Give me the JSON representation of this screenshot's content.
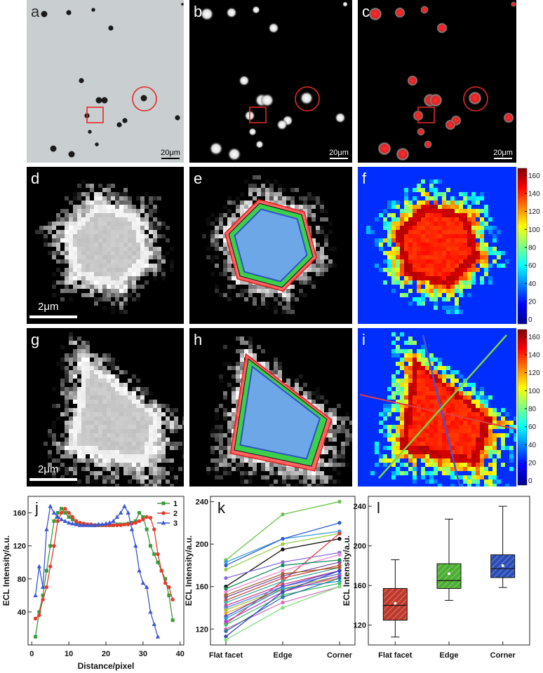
{
  "panels": [
    {
      "label": "a",
      "scale_bar": "20μm"
    },
    {
      "label": "b",
      "scale_bar": "20μm"
    },
    {
      "label": "c",
      "scale_bar": "20μm"
    },
    {
      "label": "d",
      "scale_bar": "2μm"
    },
    {
      "label": "e"
    },
    {
      "label": "f"
    },
    {
      "label": "g",
      "scale_bar": "2μm"
    },
    {
      "label": "h"
    },
    {
      "label": "i"
    }
  ],
  "colorbars": [
    {
      "lim": [
        -5,
        168
      ],
      "ticks": [
        0,
        20,
        40,
        60,
        80,
        100,
        120,
        140,
        160
      ]
    },
    {
      "lim": [
        -5,
        168
      ],
      "ticks": [
        0,
        20,
        40,
        60,
        80,
        100,
        120,
        140,
        160
      ]
    }
  ],
  "chart_data": [
    {
      "type": "line",
      "panel_label": "j",
      "xlabel": "Distance/pixel",
      "ylabel": "ECL Intensity/a.u.",
      "xlim": [
        -1,
        41
      ],
      "xticks": [
        0,
        10,
        20,
        30,
        40
      ],
      "ylim": [
        0,
        180
      ],
      "yticks": [
        40,
        80,
        120,
        160
      ],
      "legend": "upper right",
      "series": [
        {
          "name": "1",
          "color": "#3a9a3a",
          "marker": "square",
          "x": [
            1,
            2,
            3,
            4,
            5,
            6,
            7,
            8,
            9,
            10,
            11,
            12,
            13,
            14,
            15,
            16,
            17,
            18,
            19,
            20,
            21,
            22,
            23,
            24,
            25,
            26,
            27,
            28,
            29,
            30,
            31,
            32,
            33,
            34,
            35,
            36,
            37,
            38
          ],
          "values": [
            10,
            40,
            60,
            90,
            120,
            150,
            160,
            165,
            160,
            155,
            152,
            148,
            147,
            146,
            146,
            145,
            145,
            145,
            145,
            145,
            145,
            145,
            146,
            146,
            146,
            147,
            148,
            150,
            160,
            155,
            140,
            120,
            110,
            100,
            90,
            80,
            60,
            30
          ]
        },
        {
          "name": "2",
          "color": "#e8392c",
          "marker": "circle",
          "x": [
            1,
            2,
            3,
            4,
            5,
            6,
            7,
            8,
            9,
            10,
            11,
            12,
            13,
            14,
            15,
            16,
            17,
            18,
            19,
            20,
            21,
            22,
            23,
            24,
            25,
            26,
            27,
            28,
            29,
            30,
            31,
            32,
            33,
            34,
            35,
            36,
            37,
            38
          ],
          "values": [
            32,
            36,
            55,
            70,
            95,
            120,
            150,
            160,
            165,
            160,
            155,
            150,
            148,
            147,
            146,
            146,
            145,
            145,
            145,
            145,
            145,
            145,
            145,
            145,
            146,
            146,
            147,
            148,
            150,
            152,
            155,
            154,
            140,
            110,
            90,
            75,
            70,
            55
          ]
        },
        {
          "name": "3",
          "color": "#3a56d4",
          "marker": "triangle",
          "x": [
            1,
            2,
            3,
            4,
            5,
            6,
            7,
            8,
            9,
            10,
            11,
            12,
            13,
            14,
            15,
            16,
            17,
            18,
            19,
            20,
            21,
            22,
            23,
            24,
            25,
            26,
            27,
            28,
            29,
            30,
            31,
            32,
            33,
            34
          ],
          "values": [
            60,
            95,
            70,
            140,
            168,
            160,
            155,
            152,
            150,
            148,
            147,
            146,
            145,
            145,
            145,
            145,
            145,
            146,
            146,
            147,
            148,
            150,
            155,
            160,
            168,
            160,
            140,
            120,
            90,
            75,
            70,
            40,
            25,
            10
          ]
        }
      ]
    },
    {
      "type": "line",
      "panel_label": "k",
      "ylabel": "ECL Intensity/a.u.",
      "categories": [
        "Flat facet",
        "Edge",
        "Corner"
      ],
      "ylim": [
        105,
        245
      ],
      "yticks": [
        120,
        160,
        200,
        240
      ],
      "series": [
        {
          "color": "#6cc24a",
          "values": [
            185,
            228,
            240
          ]
        },
        {
          "color": "#3c9de0",
          "values": [
            183,
            205,
            212
          ]
        },
        {
          "color": "#2f5fd0",
          "values": [
            180,
            205,
            220
          ]
        },
        {
          "color": "#9ad04f",
          "values": [
            176,
            200,
            210
          ]
        },
        {
          "color": "#111111",
          "values": [
            160,
            195,
            205
          ]
        },
        {
          "color": "#8a6fd8",
          "values": [
            168,
            183,
            192
          ]
        },
        {
          "color": "#e03a3a",
          "values": [
            125,
            165,
            210
          ]
        },
        {
          "color": "#e88ad0",
          "values": [
            155,
            175,
            190
          ]
        },
        {
          "color": "#7f4fa0",
          "values": [
            150,
            170,
            183
          ]
        },
        {
          "color": "#c05050",
          "values": [
            147,
            168,
            180
          ]
        },
        {
          "color": "#40b0a0",
          "values": [
            145,
            165,
            178
          ]
        },
        {
          "color": "#d04090",
          "values": [
            142,
            162,
            175
          ]
        },
        {
          "color": "#5080f0",
          "values": [
            140,
            160,
            172
          ]
        },
        {
          "color": "#a0c040",
          "values": [
            138,
            158,
            170
          ]
        },
        {
          "color": "#f0a030",
          "values": [
            135,
            157,
            168
          ]
        },
        {
          "color": "#6050c0",
          "values": [
            132,
            160,
            175
          ]
        },
        {
          "color": "#20a0d0",
          "values": [
            130,
            158,
            165
          ]
        },
        {
          "color": "#b040d0",
          "values": [
            127,
            155,
            170
          ]
        },
        {
          "color": "#40c070",
          "values": [
            124,
            152,
            163
          ]
        },
        {
          "color": "#d070c0",
          "values": [
            120,
            145,
            160
          ]
        },
        {
          "color": "#3070a0",
          "values": [
            118,
            150,
            168
          ]
        },
        {
          "color": "#4040c0",
          "values": [
            113,
            155,
            175
          ]
        },
        {
          "color": "#80e080",
          "values": [
            110,
            140,
            160
          ]
        },
        {
          "color": "#158a60",
          "values": [
            158,
            180,
            185
          ]
        },
        {
          "color": "#a06030",
          "values": [
            152,
            172,
            178
          ]
        }
      ]
    },
    {
      "type": "box",
      "panel_label": "l",
      "ylabel": "ECL Intensity/a.u.",
      "categories": [
        "Flat facet",
        "Edge",
        "Corner"
      ],
      "ylim": [
        100,
        250
      ],
      "yticks": [
        120,
        160,
        200,
        240
      ],
      "boxes": [
        {
          "color": "#c0392b",
          "min": 108,
          "q1": 125,
          "median": 140,
          "q3": 157,
          "max": 186,
          "mean": 142
        },
        {
          "color": "#4caf32",
          "min": 145,
          "q1": 157,
          "median": 165,
          "q3": 182,
          "max": 227,
          "mean": 172
        },
        {
          "color": "#2c4db8",
          "min": 158,
          "q1": 168,
          "median": 177,
          "q3": 191,
          "max": 240,
          "mean": 180
        }
      ]
    }
  ]
}
